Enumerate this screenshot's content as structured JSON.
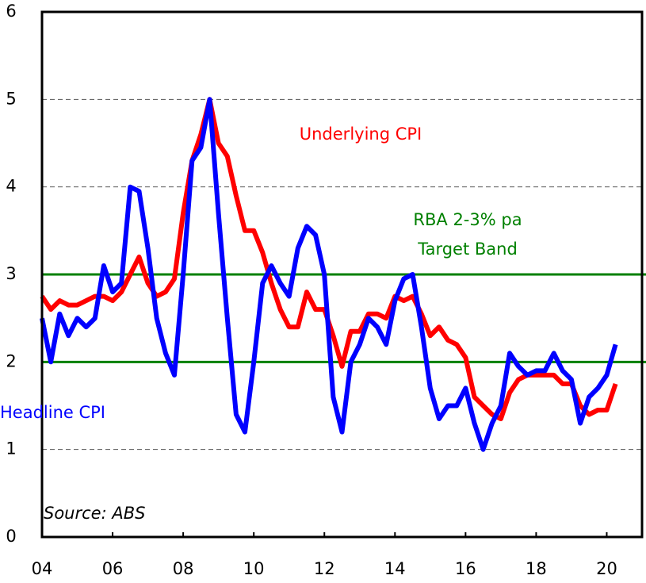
{
  "chart_data": {
    "type": "line",
    "x": [
      2004,
      2004.25,
      2004.5,
      2004.75,
      2005,
      2005.25,
      2005.5,
      2005.75,
      2006,
      2006.25,
      2006.5,
      2006.75,
      2007,
      2007.25,
      2007.5,
      2007.75,
      2008,
      2008.25,
      2008.5,
      2008.75,
      2009,
      2009.25,
      2009.5,
      2009.75,
      2010,
      2010.25,
      2010.5,
      2010.75,
      2011,
      2011.25,
      2011.5,
      2011.75,
      2012,
      2012.25,
      2012.5,
      2012.75,
      2013,
      2013.25,
      2013.5,
      2013.75,
      2014,
      2014.25,
      2014.5,
      2014.75,
      2015,
      2015.25,
      2015.5,
      2015.75,
      2016,
      2016.25,
      2016.5,
      2016.75,
      2017,
      2017.25,
      2017.5,
      2017.75,
      2018,
      2018.25,
      2018.5,
      2018.75,
      2019,
      2019.25,
      2019.5,
      2019.75,
      2020,
      2020.25
    ],
    "series": [
      {
        "name": "Underlying CPI",
        "color": "#ff0000",
        "values": [
          2.75,
          2.6,
          2.7,
          2.65,
          2.65,
          2.7,
          2.75,
          2.75,
          2.7,
          2.8,
          3.0,
          3.2,
          2.9,
          2.75,
          2.8,
          2.95,
          3.7,
          4.3,
          4.6,
          5.0,
          4.5,
          4.35,
          3.9,
          3.5,
          3.5,
          3.25,
          2.9,
          2.6,
          2.4,
          2.4,
          2.8,
          2.6,
          2.6,
          2.3,
          1.95,
          2.35,
          2.35,
          2.55,
          2.55,
          2.5,
          2.75,
          2.7,
          2.75,
          2.55,
          2.3,
          2.4,
          2.25,
          2.2,
          2.05,
          1.6,
          1.5,
          1.4,
          1.35,
          1.65,
          1.8,
          1.85,
          1.85,
          1.85,
          1.85,
          1.75,
          1.75,
          1.5,
          1.4,
          1.45,
          1.45,
          1.75
        ]
      },
      {
        "name": "Headline CPI",
        "color": "#0000ff",
        "values": [
          2.5,
          2.0,
          2.55,
          2.3,
          2.5,
          2.4,
          2.5,
          3.1,
          2.8,
          2.9,
          4.0,
          3.95,
          3.3,
          2.5,
          2.1,
          1.85,
          3.0,
          4.3,
          4.45,
          5.0,
          3.7,
          2.5,
          1.4,
          1.2,
          2.0,
          2.9,
          3.1,
          2.9,
          2.75,
          3.3,
          3.55,
          3.45,
          3.0,
          1.6,
          1.2,
          2.0,
          2.2,
          2.5,
          2.4,
          2.2,
          2.7,
          2.95,
          3.0,
          2.4,
          1.7,
          1.35,
          1.5,
          1.5,
          1.7,
          1.3,
          1.0,
          1.3,
          1.5,
          2.1,
          1.95,
          1.85,
          1.9,
          1.9,
          2.1,
          1.9,
          1.8,
          1.3,
          1.6,
          1.7,
          1.85,
          2.2
        ]
      }
    ],
    "target_band": {
      "lines": [
        2,
        3
      ],
      "color": "#008000",
      "label": [
        "RBA 2-3% pa",
        "Target Band"
      ]
    },
    "source": "Source: ABS",
    "xlim": [
      2004,
      2021
    ],
    "xticks": [
      {
        "value": 2004,
        "label": "04"
      },
      {
        "value": 2006,
        "label": "06"
      },
      {
        "value": 2008,
        "label": "08"
      },
      {
        "value": 2010,
        "label": "10"
      },
      {
        "value": 2012,
        "label": "12"
      },
      {
        "value": 2014,
        "label": "14"
      },
      {
        "value": 2016,
        "label": "16"
      },
      {
        "value": 2018,
        "label": "18"
      },
      {
        "value": 2020,
        "label": "20"
      }
    ],
    "ylim": [
      0,
      6
    ],
    "yticks": [
      0,
      1,
      2,
      3,
      4,
      5,
      6
    ],
    "grid": true
  }
}
